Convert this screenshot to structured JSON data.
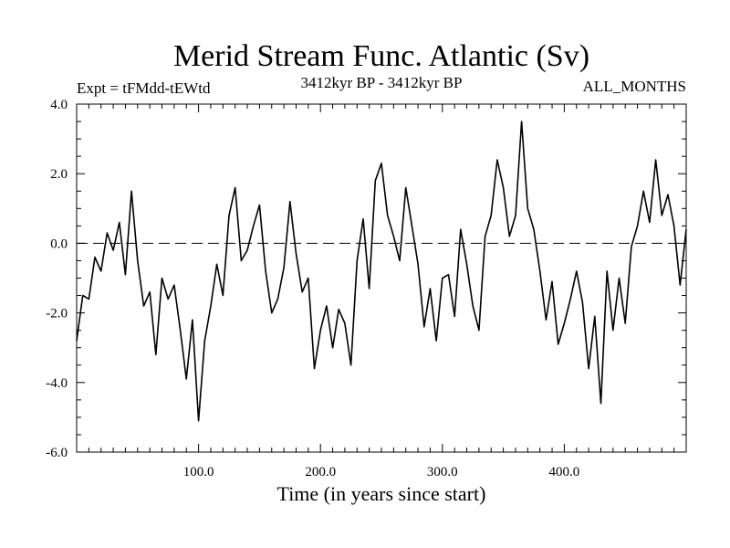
{
  "chart_data": {
    "type": "line",
    "title": "Merid Stream Func. Atlantic (Sv)",
    "header_left": "Expt = tFMdd-tEWtd",
    "header_center": "3412kyr BP - 3412kyr BP",
    "header_right": "ALL_MONTHS",
    "xlabel": "Time (in years since start)",
    "ylabel": "",
    "xlim": [
      0,
      500
    ],
    "ylim": [
      -6,
      4
    ],
    "x_ticks": [
      100,
      200,
      300,
      400
    ],
    "x_tick_labels": [
      "100.0",
      "200.0",
      "300.0",
      "400.0"
    ],
    "y_ticks": [
      -6,
      -4,
      -2,
      0,
      2,
      4
    ],
    "y_tick_labels": [
      "-6.0",
      "-4.0",
      "-2.0",
      "0.0",
      "2.0",
      "4.0"
    ],
    "reference_line": 0,
    "series": [
      {
        "name": "Merid Stream Func. Atlantic",
        "color": "#000000",
        "x": [
          0,
          5,
          10,
          15,
          20,
          25,
          30,
          35,
          40,
          45,
          50,
          55,
          60,
          65,
          70,
          75,
          80,
          85,
          90,
          95,
          100,
          105,
          110,
          115,
          120,
          125,
          130,
          135,
          140,
          145,
          150,
          155,
          160,
          165,
          170,
          175,
          180,
          185,
          190,
          195,
          200,
          205,
          210,
          215,
          220,
          225,
          230,
          235,
          240,
          245,
          250,
          255,
          260,
          265,
          270,
          275,
          280,
          285,
          290,
          295,
          300,
          305,
          310,
          315,
          320,
          325,
          330,
          335,
          340,
          345,
          350,
          355,
          360,
          365,
          370,
          375,
          380,
          385,
          390,
          395,
          400,
          405,
          410,
          415,
          420,
          425,
          430,
          435,
          440,
          445,
          450,
          455,
          460,
          465,
          470,
          475,
          480,
          485,
          490,
          495,
          500
        ],
        "values": [
          -2.8,
          -1.5,
          -1.6,
          -0.4,
          -0.8,
          0.3,
          -0.2,
          0.6,
          -0.9,
          1.5,
          -0.5,
          -1.8,
          -1.4,
          -3.2,
          -1.0,
          -1.6,
          -1.2,
          -2.5,
          -3.9,
          -2.2,
          -5.1,
          -2.8,
          -1.8,
          -0.6,
          -1.5,
          0.8,
          1.6,
          -0.5,
          -0.2,
          0.5,
          1.1,
          -0.8,
          -2.0,
          -1.6,
          -0.7,
          1.2,
          -0.3,
          -1.4,
          -1.0,
          -3.6,
          -2.5,
          -1.8,
          -3.0,
          -1.9,
          -2.3,
          -3.5,
          -0.5,
          0.7,
          -1.3,
          1.8,
          2.3,
          0.8,
          0.2,
          -0.5,
          1.6,
          0.5,
          -0.6,
          -2.4,
          -1.3,
          -2.8,
          -1.0,
          -0.9,
          -2.1,
          0.4,
          -0.6,
          -1.8,
          -2.5,
          0.2,
          0.8,
          2.4,
          1.6,
          0.2,
          0.8,
          3.5,
          1.0,
          0.4,
          -0.8,
          -2.2,
          -1.1,
          -2.9,
          -2.3,
          -1.6,
          -0.8,
          -1.7,
          -3.6,
          -2.1,
          -4.6,
          -0.8,
          -2.5,
          -1.0,
          -2.3,
          -0.1,
          0.5,
          1.5,
          0.6,
          2.4,
          0.8,
          1.4,
          0.5,
          -1.2,
          0.4
        ]
      }
    ]
  }
}
